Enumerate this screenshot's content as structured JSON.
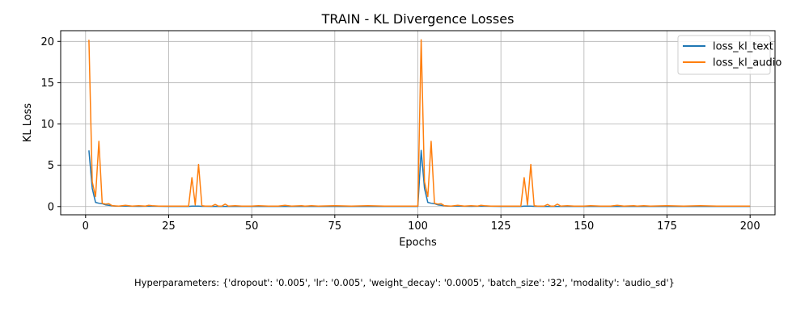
{
  "chart_data": {
    "type": "line",
    "title": "TRAIN - KL Divergence Losses",
    "xlabel": "Epochs",
    "ylabel": "KL Loss",
    "xlim": [
      -7.5,
      207.5
    ],
    "ylim": [
      -1.0,
      21.3
    ],
    "xticks": [
      0,
      25,
      50,
      75,
      100,
      125,
      150,
      175,
      200
    ],
    "yticks": [
      0,
      5,
      10,
      15,
      20
    ],
    "grid": true,
    "legend_position": "top-right",
    "series": [
      {
        "name": "loss_kl_text",
        "color": "#1f77b4",
        "points": [
          [
            1,
            6.8
          ],
          [
            2,
            2.2
          ],
          [
            3,
            0.5
          ],
          [
            4,
            0.4
          ],
          [
            5,
            0.35
          ],
          [
            6,
            0.2
          ],
          [
            7,
            0.15
          ],
          [
            8,
            0.1
          ],
          [
            9,
            0.05
          ],
          [
            12,
            0.05
          ],
          [
            16,
            0.03
          ],
          [
            20,
            0.05
          ],
          [
            25,
            0.02
          ],
          [
            31,
            0.02
          ],
          [
            32,
            0.05
          ],
          [
            33,
            0.05
          ],
          [
            34,
            0.05
          ],
          [
            35,
            0.03
          ],
          [
            38,
            0.02
          ],
          [
            50,
            0.02
          ],
          [
            75,
            0.02
          ],
          [
            100,
            0.02
          ],
          [
            101,
            6.8
          ],
          [
            102,
            2.2
          ],
          [
            103,
            0.5
          ],
          [
            104,
            0.4
          ],
          [
            105,
            0.35
          ],
          [
            106,
            0.2
          ],
          [
            107,
            0.15
          ],
          [
            108,
            0.1
          ],
          [
            109,
            0.05
          ],
          [
            112,
            0.05
          ],
          [
            116,
            0.03
          ],
          [
            120,
            0.05
          ],
          [
            125,
            0.02
          ],
          [
            131,
            0.02
          ],
          [
            132,
            0.05
          ],
          [
            133,
            0.05
          ],
          [
            134,
            0.05
          ],
          [
            135,
            0.03
          ],
          [
            138,
            0.02
          ],
          [
            150,
            0.02
          ],
          [
            175,
            0.02
          ],
          [
            200,
            0.02
          ]
        ]
      },
      {
        "name": "loss_kl_audio",
        "color": "#ff7f0e",
        "points": [
          [
            1,
            20.2
          ],
          [
            2,
            3.0
          ],
          [
            3,
            1.2
          ],
          [
            4,
            7.9
          ],
          [
            5,
            0.4
          ],
          [
            6,
            0.3
          ],
          [
            7,
            0.35
          ],
          [
            8,
            0.1
          ],
          [
            10,
            0.05
          ],
          [
            12,
            0.15
          ],
          [
            14,
            0.05
          ],
          [
            16,
            0.1
          ],
          [
            18,
            0.05
          ],
          [
            19,
            0.15
          ],
          [
            20,
            0.1
          ],
          [
            22,
            0.05
          ],
          [
            25,
            0.05
          ],
          [
            28,
            0.05
          ],
          [
            30,
            0.05
          ],
          [
            31,
            0.05
          ],
          [
            32,
            3.5
          ],
          [
            33,
            0.2
          ],
          [
            34,
            5.1
          ],
          [
            35,
            0.1
          ],
          [
            36,
            0.05
          ],
          [
            38,
            0.05
          ],
          [
            39,
            0.25
          ],
          [
            40,
            0.05
          ],
          [
            41,
            0.05
          ],
          [
            42,
            0.3
          ],
          [
            43,
            0.05
          ],
          [
            45,
            0.1
          ],
          [
            47,
            0.05
          ],
          [
            50,
            0.05
          ],
          [
            52,
            0.1
          ],
          [
            55,
            0.05
          ],
          [
            58,
            0.05
          ],
          [
            60,
            0.15
          ],
          [
            62,
            0.05
          ],
          [
            65,
            0.1
          ],
          [
            66,
            0.05
          ],
          [
            68,
            0.1
          ],
          [
            70,
            0.05
          ],
          [
            75,
            0.1
          ],
          [
            80,
            0.05
          ],
          [
            85,
            0.1
          ],
          [
            90,
            0.05
          ],
          [
            95,
            0.05
          ],
          [
            100,
            0.05
          ],
          [
            101,
            20.2
          ],
          [
            102,
            3.0
          ],
          [
            103,
            1.2
          ],
          [
            104,
            7.9
          ],
          [
            105,
            0.4
          ],
          [
            106,
            0.3
          ],
          [
            107,
            0.35
          ],
          [
            108,
            0.1
          ],
          [
            110,
            0.05
          ],
          [
            112,
            0.15
          ],
          [
            114,
            0.05
          ],
          [
            116,
            0.1
          ],
          [
            118,
            0.05
          ],
          [
            119,
            0.15
          ],
          [
            120,
            0.1
          ],
          [
            122,
            0.05
          ],
          [
            125,
            0.05
          ],
          [
            128,
            0.05
          ],
          [
            130,
            0.05
          ],
          [
            131,
            0.05
          ],
          [
            132,
            3.5
          ],
          [
            133,
            0.2
          ],
          [
            134,
            5.1
          ],
          [
            135,
            0.1
          ],
          [
            136,
            0.05
          ],
          [
            138,
            0.05
          ],
          [
            139,
            0.25
          ],
          [
            140,
            0.05
          ],
          [
            141,
            0.05
          ],
          [
            142,
            0.3
          ],
          [
            143,
            0.05
          ],
          [
            145,
            0.1
          ],
          [
            147,
            0.05
          ],
          [
            150,
            0.05
          ],
          [
            152,
            0.1
          ],
          [
            155,
            0.05
          ],
          [
            158,
            0.05
          ],
          [
            160,
            0.15
          ],
          [
            162,
            0.05
          ],
          [
            165,
            0.1
          ],
          [
            166,
            0.05
          ],
          [
            168,
            0.1
          ],
          [
            170,
            0.05
          ],
          [
            175,
            0.1
          ],
          [
            180,
            0.05
          ],
          [
            185,
            0.1
          ],
          [
            190,
            0.05
          ],
          [
            195,
            0.05
          ],
          [
            200,
            0.05
          ]
        ]
      }
    ]
  },
  "hyperparameters_text": "Hyperparameters: {'dropout': '0.005', 'lr': '0.005', 'weight_decay': '0.0005', 'batch_size': '32', 'modality': 'audio_sd'}"
}
